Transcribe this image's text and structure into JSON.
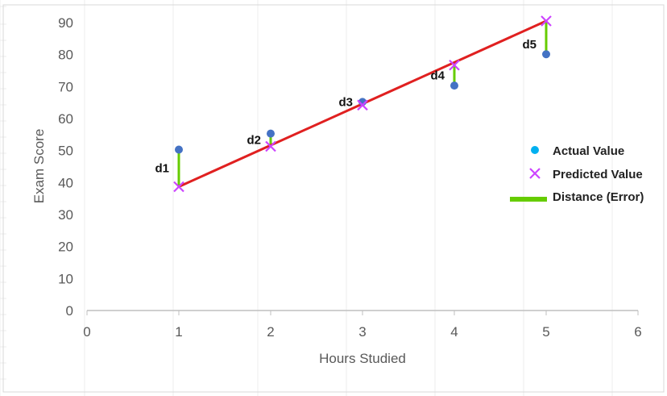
{
  "chart_data": {
    "type": "scatter",
    "title": "",
    "xlabel": "Hours Studied",
    "ylabel": "Exam Score",
    "xlim": [
      0,
      6
    ],
    "ylim": [
      0,
      90
    ],
    "x_ticks": [
      0,
      1,
      2,
      3,
      4,
      5,
      6
    ],
    "y_ticks": [
      0,
      10,
      20,
      30,
      40,
      50,
      60,
      70,
      80,
      90
    ],
    "grid": false,
    "legend_position": "right",
    "series": [
      {
        "name": "Actual Value",
        "marker": "circle",
        "x": [
          1,
          2,
          3,
          4,
          5
        ],
        "y": [
          50.3,
          55.3,
          65.2,
          70.3,
          80.1
        ]
      },
      {
        "name": "Predicted Value",
        "marker": "x",
        "x": [
          1,
          2,
          3,
          4,
          5
        ],
        "y": [
          38.7,
          51.3,
          64.2,
          76.7,
          90.5
        ]
      }
    ],
    "regression_line": {
      "x": [
        1,
        5
      ],
      "y": [
        38.7,
        90.5
      ]
    },
    "error_legend_label": "Distance (Error)",
    "distance_labels": [
      "d1",
      "d2",
      "d3",
      "d4",
      "d5"
    ],
    "colors": {
      "actual": "#4472c4",
      "actual_legend": "#00b0f0",
      "predicted": "#cc44ff",
      "line": "#e02020",
      "error": "#66cc00",
      "axis": "#bfbfbf",
      "tick_text": "#595959"
    }
  }
}
